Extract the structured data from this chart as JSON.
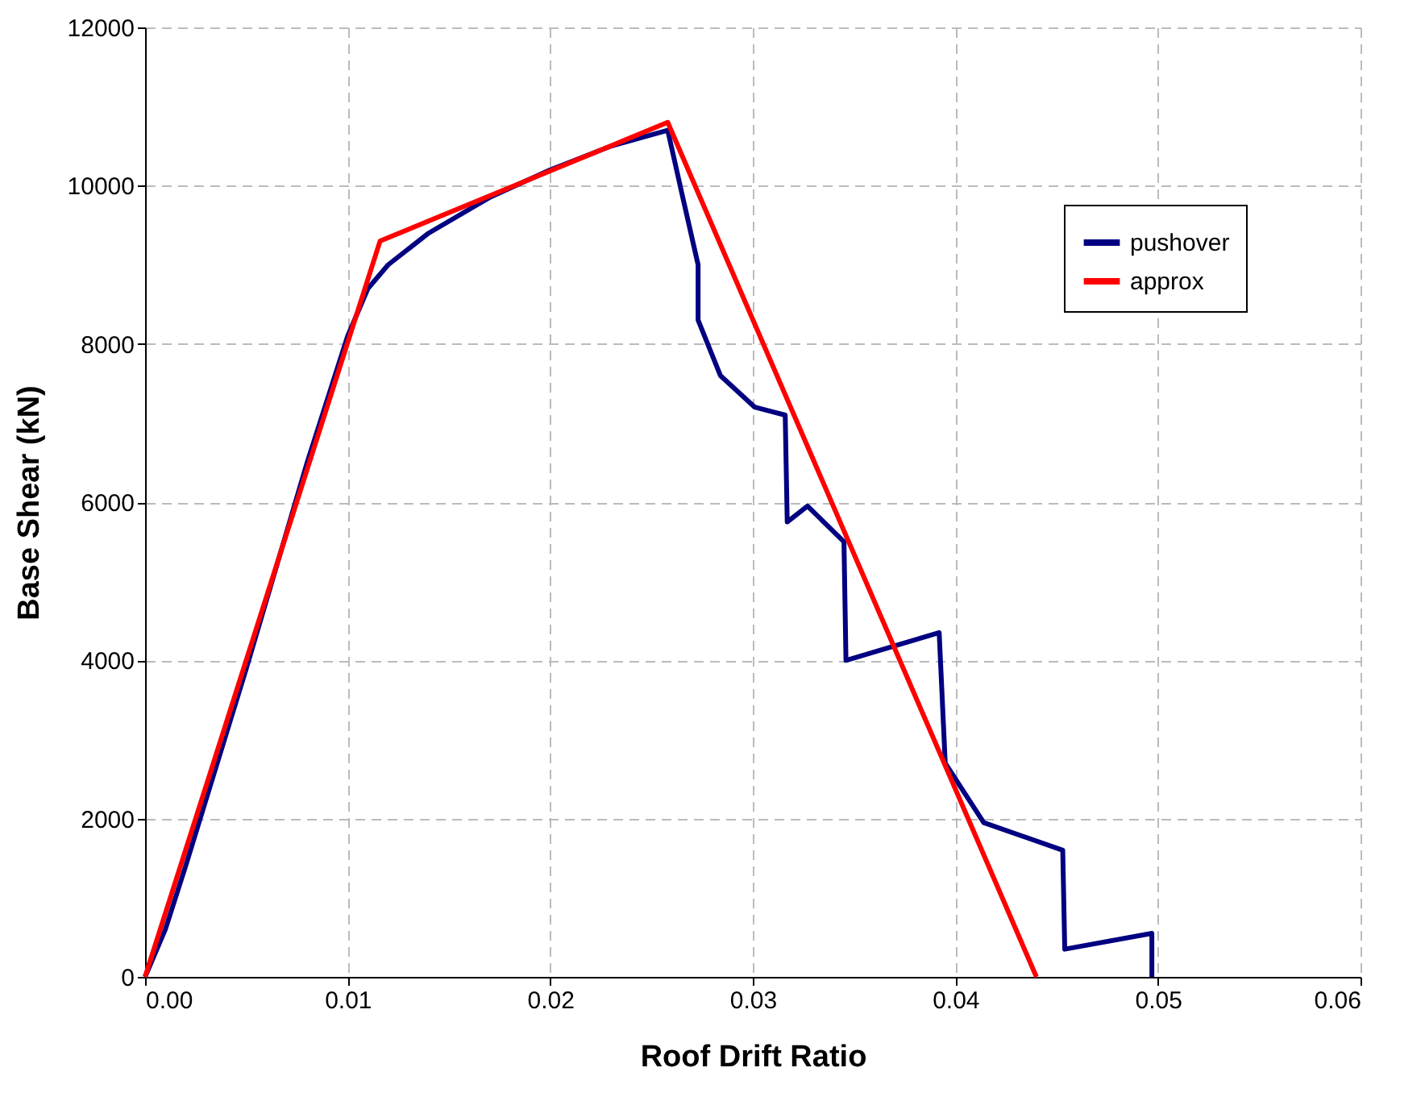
{
  "chart_data": {
    "type": "line",
    "xlabel": "Roof Drift Ratio",
    "ylabel": "Base Shear (kN)",
    "xlim": [
      0,
      0.06
    ],
    "xticks": [
      {
        "value": 0,
        "label": "0.00"
      },
      {
        "value": 0.01,
        "label": "0.01"
      },
      {
        "value": 0.02,
        "label": "0.02"
      },
      {
        "value": 0.03,
        "label": "0.03"
      },
      {
        "value": 0.04,
        "label": "0.04"
      },
      {
        "value": 0.05,
        "label": "0.05"
      },
      {
        "value": 0.06,
        "label": "0.06"
      }
    ],
    "ylim": [
      0,
      12000
    ],
    "yticks": [
      0,
      2000,
      4000,
      6000,
      8000,
      10000,
      12000
    ],
    "grid": true,
    "legend": "top right",
    "line_style": "solid",
    "marker": "none",
    "series": [
      {
        "name": "pushover",
        "color": "#000080",
        "x": [
          0,
          0.001,
          0.002,
          0.005,
          0.008,
          0.01,
          0.011,
          0.012,
          0.014,
          0.017,
          0.02,
          0.023,
          0.0258,
          0.0265,
          0.0273,
          0.0273,
          0.0284,
          0.0301,
          0.0316,
          0.0317,
          0.0327,
          0.0345,
          0.0346,
          0.0392,
          0.0395,
          0.0414,
          0.0453,
          0.0454,
          0.0497,
          0.0497
        ],
        "values": [
          0,
          600,
          1400,
          3900,
          6500,
          8100,
          8700,
          9000,
          9400,
          9850,
          10200,
          10500,
          10700,
          9900,
          9000,
          8300,
          7600,
          7200,
          7100,
          5750,
          5950,
          5500,
          4000,
          4350,
          2700,
          1950,
          1600,
          350,
          550,
          0
        ]
      },
      {
        "name": "approx",
        "color": "#ff0000",
        "x": [
          0,
          0.0116,
          0.0258,
          0.044
        ],
        "values": [
          0,
          9300,
          10800,
          0
        ]
      }
    ]
  }
}
